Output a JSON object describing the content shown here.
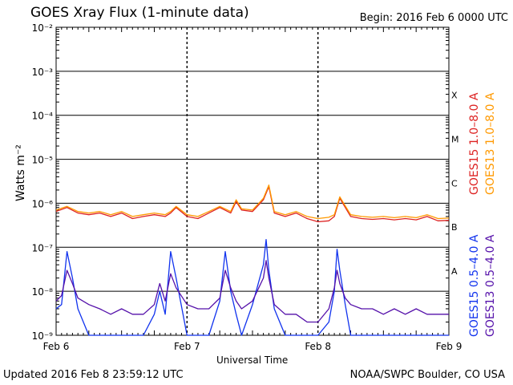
{
  "header": {
    "title": "GOES Xray Flux (1-minute data)",
    "begin": "Begin:  2016 Feb 6 0000 UTC"
  },
  "footer": {
    "updated": "Updated 2016 Feb  8 23:59:12 UTC",
    "source": "NOAA/SWPC Boulder, CO USA"
  },
  "chart_data": {
    "type": "line",
    "xlabel": "Universal Time",
    "ylabel": "Watts m⁻²",
    "yscale": "log",
    "ylim": [
      1e-09,
      0.01
    ],
    "xlim": [
      0,
      72
    ],
    "x_unit": "hours since 2016 Feb 6 0000 UTC",
    "x_ticks": [
      {
        "label": "Feb 6",
        "hour": 0
      },
      {
        "label": "Feb 7",
        "hour": 24
      },
      {
        "label": "Feb 8",
        "hour": 48
      },
      {
        "label": "Feb 9",
        "hour": 72
      }
    ],
    "y_ticks": [
      {
        "label": "10⁻²",
        "value": 0.01
      },
      {
        "label": "10⁻³",
        "value": 0.001
      },
      {
        "label": "10⁻⁴",
        "value": 0.0001
      },
      {
        "label": "10⁻⁵",
        "value": 1e-05
      },
      {
        "label": "10⁻⁶",
        "value": 1e-06
      },
      {
        "label": "10⁻⁷",
        "value": 1e-07
      },
      {
        "label": "10⁻⁸",
        "value": 1e-08
      },
      {
        "label": "10⁻⁹",
        "value": 1e-09
      }
    ],
    "flare_classes": [
      {
        "label": "X",
        "value": 0.0003
      },
      {
        "label": "M",
        "value": 3e-05
      },
      {
        "label": "C",
        "value": 3e-06
      },
      {
        "label": "B",
        "value": 3e-07
      },
      {
        "label": "A",
        "value": 3e-08
      }
    ],
    "grid": true,
    "legend_position": "right",
    "series": [
      {
        "name": "GOES15 1.0–8.0 A",
        "color": "#dd2222",
        "x": [
          0,
          2,
          4,
          6,
          8,
          10,
          12,
          14,
          16,
          18,
          20,
          21,
          22,
          24,
          26,
          28,
          30,
          32,
          33,
          34,
          36,
          38,
          39,
          40,
          42,
          44,
          46,
          48,
          50,
          51,
          52,
          54,
          56,
          58,
          60,
          62,
          64,
          66,
          68,
          70,
          72
        ],
        "y": [
          6.5e-07,
          8e-07,
          6e-07,
          5.5e-07,
          6e-07,
          5e-07,
          6e-07,
          4.5e-07,
          5e-07,
          5.5e-07,
          5e-07,
          6e-07,
          8e-07,
          5e-07,
          4.5e-07,
          6e-07,
          8e-07,
          6e-07,
          1.1e-06,
          7e-07,
          6.5e-07,
          1.2e-06,
          2.4e-06,
          6e-07,
          5e-07,
          6e-07,
          4.5e-07,
          3.8e-07,
          4e-07,
          5e-07,
          1.3e-06,
          5e-07,
          4.5e-07,
          4.3e-07,
          4.5e-07,
          4.2e-07,
          4.5e-07,
          4.2e-07,
          5e-07,
          4e-07,
          4.1e-07
        ]
      },
      {
        "name": "GOES13 1.0–8.0 A",
        "color": "#ff9900",
        "x": [
          0,
          2,
          4,
          6,
          8,
          10,
          12,
          14,
          16,
          18,
          20,
          21,
          22,
          24,
          26,
          28,
          30,
          32,
          33,
          34,
          36,
          38,
          39,
          40,
          42,
          44,
          46,
          48,
          50,
          51,
          52,
          54,
          56,
          58,
          60,
          62,
          64,
          66,
          68,
          70,
          72
        ],
        "y": [
          7e-07,
          8.5e-07,
          6.5e-07,
          6e-07,
          6.5e-07,
          5.5e-07,
          6.5e-07,
          5e-07,
          5.5e-07,
          6e-07,
          5.5e-07,
          6.5e-07,
          8.5e-07,
          5.5e-07,
          5e-07,
          6.5e-07,
          8.5e-07,
          6.5e-07,
          1.2e-06,
          7.5e-07,
          7e-07,
          1.3e-06,
          2.6e-06,
          6.5e-07,
          5.5e-07,
          6.5e-07,
          5e-07,
          4.5e-07,
          4.8e-07,
          5.5e-07,
          1.4e-06,
          5.5e-07,
          5e-07,
          4.8e-07,
          5e-07,
          4.7e-07,
          5e-07,
          4.7e-07,
          5.5e-07,
          4.5e-07,
          4.6e-07
        ]
      },
      {
        "name": "GOES15 0.5–4.0 A",
        "color": "#1133ee",
        "x": [
          0,
          1,
          2,
          3,
          4,
          6,
          8,
          10,
          12,
          14,
          16,
          18,
          19,
          20,
          21,
          22,
          24,
          26,
          28,
          30,
          31,
          32,
          33,
          34,
          36,
          38,
          38.5,
          39,
          40,
          42,
          44,
          46,
          48,
          50,
          51,
          51.5,
          52,
          53,
          54,
          56,
          58,
          60,
          62,
          64,
          66,
          68,
          70,
          72
        ],
        "y": [
          4e-09,
          5e-09,
          8e-08,
          2e-08,
          4e-09,
          1e-09,
          1e-09,
          1e-09,
          1e-09,
          1e-09,
          1e-09,
          3e-09,
          1e-08,
          3e-09,
          8e-08,
          2e-08,
          1e-09,
          1e-09,
          1e-09,
          6e-09,
          8e-08,
          1e-08,
          3e-09,
          1e-09,
          5e-09,
          4e-08,
          1.5e-07,
          3e-08,
          4e-09,
          1e-09,
          1e-09,
          1e-09,
          1e-09,
          2e-09,
          1e-08,
          9e-08,
          3e-08,
          5e-09,
          1e-09,
          1e-09,
          1e-09,
          1e-09,
          1e-09,
          1e-09,
          1e-09,
          1e-09,
          1e-09,
          1e-09
        ]
      },
      {
        "name": "GOES13 0.5–4.0 A",
        "color": "#5511aa",
        "x": [
          0,
          1,
          2,
          3,
          4,
          6,
          8,
          10,
          12,
          14,
          16,
          18,
          19,
          20,
          21,
          22,
          24,
          26,
          28,
          30,
          31,
          32,
          33,
          34,
          36,
          38,
          38.5,
          39,
          40,
          42,
          44,
          46,
          48,
          50,
          51,
          51.5,
          52,
          53,
          54,
          56,
          58,
          60,
          62,
          64,
          66,
          68,
          70,
          72
        ],
        "y": [
          6e-09,
          8e-09,
          3e-08,
          1.5e-08,
          7e-09,
          5e-09,
          4e-09,
          3e-09,
          4e-09,
          3e-09,
          3e-09,
          5e-09,
          1.5e-08,
          6e-09,
          2.5e-08,
          1.2e-08,
          5e-09,
          4e-09,
          4e-09,
          7e-09,
          3e-08,
          1.2e-08,
          6e-09,
          4e-09,
          6e-09,
          2e-08,
          5e-08,
          2e-08,
          5e-09,
          3e-09,
          3e-09,
          2e-09,
          2e-09,
          4e-09,
          1.2e-08,
          3e-08,
          1.5e-08,
          7e-09,
          5e-09,
          4e-09,
          4e-09,
          3e-09,
          4e-09,
          3e-09,
          4e-09,
          3e-09,
          3e-09,
          3e-09
        ]
      }
    ]
  }
}
